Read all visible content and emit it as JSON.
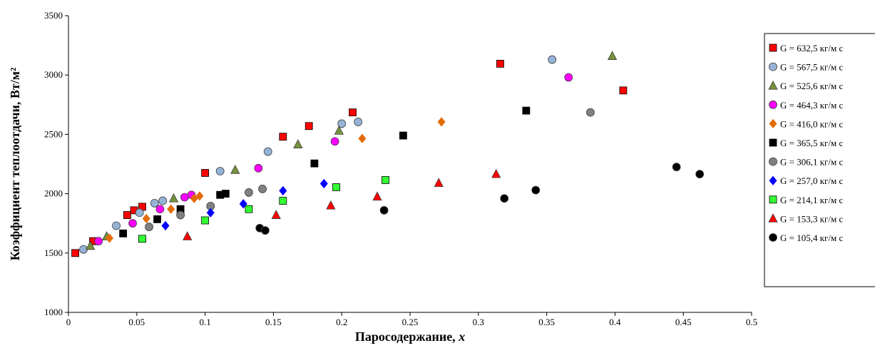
{
  "chart_data": {
    "type": "scatter",
    "xlabel": "Паросодержание, x",
    "xlabel_main": "Паросодержание, ",
    "xlabel_var": "x",
    "ylabel": "Коэффициент теплоотдачи, Вт/м²",
    "xlim": [
      0,
      0.5
    ],
    "ylim": [
      1000,
      3500
    ],
    "x_ticks": [
      "0",
      "0.05",
      "0.1",
      "0.15",
      "0.2",
      "0.25",
      "0.3",
      "0.35",
      "0.4",
      "0.45",
      "0.5"
    ],
    "y_ticks": [
      "1000",
      "1500",
      "2000",
      "2500",
      "3000",
      "3500"
    ],
    "grid": "none",
    "legend_position": "right",
    "series": [
      {
        "name": "G = 632,5  кг/м с",
        "marker": "square",
        "color": "#ff0000",
        "points": [
          [
            0.005,
            1500
          ],
          [
            0.018,
            1600
          ],
          [
            0.043,
            1820
          ],
          [
            0.048,
            1860
          ],
          [
            0.054,
            1890
          ],
          [
            0.1,
            2175
          ],
          [
            0.157,
            2480
          ],
          [
            0.176,
            2570
          ],
          [
            0.208,
            2685
          ],
          [
            0.316,
            3095
          ],
          [
            0.406,
            2870
          ]
        ]
      },
      {
        "name": "G = 567,5  кг/м с",
        "marker": "circle",
        "color": "#95b3d7",
        "points": [
          [
            0.011,
            1530
          ],
          [
            0.035,
            1730
          ],
          [
            0.052,
            1840
          ],
          [
            0.063,
            1920
          ],
          [
            0.069,
            1940
          ],
          [
            0.111,
            2190
          ],
          [
            0.146,
            2355
          ],
          [
            0.2,
            2590
          ],
          [
            0.212,
            2605
          ],
          [
            0.354,
            3130
          ]
        ]
      },
      {
        "name": "G = 525,6  кг/м с",
        "marker": "triangle",
        "color": "#76923c",
        "points": [
          [
            0.016,
            1560
          ],
          [
            0.028,
            1640
          ],
          [
            0.077,
            1960
          ],
          [
            0.122,
            2200
          ],
          [
            0.168,
            2415
          ],
          [
            0.198,
            2530
          ],
          [
            0.398,
            3160
          ]
        ]
      },
      {
        "name": "G = 464,3  кг/м с",
        "marker": "circle",
        "color": "#ff00ff",
        "points": [
          [
            0.022,
            1600
          ],
          [
            0.047,
            1750
          ],
          [
            0.067,
            1870
          ],
          [
            0.085,
            1970
          ],
          [
            0.09,
            1990
          ],
          [
            0.139,
            2215
          ],
          [
            0.195,
            2440
          ],
          [
            0.366,
            2980
          ]
        ]
      },
      {
        "name": "G = 416,0  кг/м с",
        "marker": "diamond",
        "color": "#e36c09",
        "points": [
          [
            0.03,
            1625
          ],
          [
            0.057,
            1790
          ],
          [
            0.075,
            1870
          ],
          [
            0.092,
            1960
          ],
          [
            0.096,
            1980
          ],
          [
            0.215,
            2465
          ],
          [
            0.273,
            2605
          ]
        ]
      },
      {
        "name": "G = 365,5  кг/м с",
        "marker": "square",
        "color": "#000000",
        "points": [
          [
            0.04,
            1665
          ],
          [
            0.065,
            1785
          ],
          [
            0.082,
            1870
          ],
          [
            0.111,
            1990
          ],
          [
            0.115,
            2000
          ],
          [
            0.18,
            2255
          ],
          [
            0.245,
            2490
          ],
          [
            0.335,
            2700
          ]
        ]
      },
      {
        "name": "G = 306,1  кг/м с",
        "marker": "circle",
        "color": "#808080",
        "points": [
          [
            0.059,
            1720
          ],
          [
            0.082,
            1820
          ],
          [
            0.104,
            1895
          ],
          [
            0.132,
            2010
          ],
          [
            0.142,
            2040
          ],
          [
            0.382,
            2685
          ]
        ]
      },
      {
        "name": "G = 257,0  кг/м с",
        "marker": "diamond",
        "color": "#0000ff",
        "points": [
          [
            0.071,
            1730
          ],
          [
            0.104,
            1840
          ],
          [
            0.128,
            1915
          ],
          [
            0.157,
            2025
          ],
          [
            0.187,
            2085
          ]
        ]
      },
      {
        "name": "G = 214,1  кг/м с",
        "marker": "square",
        "color": "#33ff33",
        "points": [
          [
            0.054,
            1620
          ],
          [
            0.1,
            1775
          ],
          [
            0.132,
            1870
          ],
          [
            0.157,
            1940
          ],
          [
            0.196,
            2055
          ],
          [
            0.232,
            2115
          ]
        ]
      },
      {
        "name": "G = 153,3  кг/м с",
        "marker": "triangle",
        "color": "#ff0000",
        "points": [
          [
            0.087,
            1640
          ],
          [
            0.152,
            1820
          ],
          [
            0.192,
            1900
          ],
          [
            0.226,
            1975
          ],
          [
            0.271,
            2090
          ],
          [
            0.313,
            2165
          ]
        ]
      },
      {
        "name": "G = 105,4  кг/м с",
        "marker": "circle",
        "color": "#000000",
        "points": [
          [
            0.14,
            1710
          ],
          [
            0.144,
            1690
          ],
          [
            0.231,
            1860
          ],
          [
            0.319,
            1960
          ],
          [
            0.342,
            2030
          ],
          [
            0.445,
            2225
          ],
          [
            0.462,
            2165
          ]
        ]
      }
    ]
  }
}
